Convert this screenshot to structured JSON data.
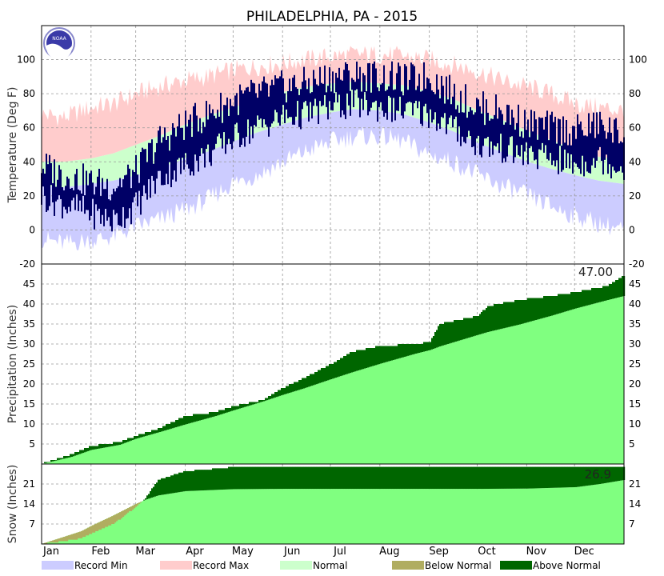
{
  "chart_data": {
    "type": "area",
    "title": "PHILADELPHIA, PA - 2015",
    "months": [
      "Jan",
      "Feb",
      "Mar",
      "Apr",
      "May",
      "Jun",
      "Jul",
      "Aug",
      "Sep",
      "Oct",
      "Nov",
      "Dec"
    ],
    "legend": [
      "Record Min",
      "Record Max",
      "Normal",
      "Below Normal",
      "Above Normal"
    ],
    "colors": {
      "record_min": "#ccccff",
      "record_max": "#ffcccc",
      "normal_temp": "#ccffcc",
      "observed_temp": "#000066",
      "below_normal": "#b0ad60",
      "above_normal": "#006600",
      "normal_accum": "#80ff80",
      "grid": "#999999"
    },
    "panels": [
      {
        "name": "temperature",
        "ylabel": "Temperature (Deg F)",
        "ylim": [
          -20,
          120
        ],
        "ticks": [
          -20,
          0,
          20,
          40,
          60,
          80,
          100
        ],
        "doy": [
          1,
          15,
          32,
          46,
          60,
          74,
          91,
          105,
          121,
          135,
          152,
          166,
          182,
          196,
          213,
          227,
          244,
          258,
          274,
          288,
          305,
          319,
          335,
          349,
          365
        ],
        "normal_high": [
          40,
          40,
          42,
          45,
          50,
          55,
          62,
          67,
          72,
          76,
          81,
          84,
          86,
          87,
          86,
          85,
          81,
          77,
          70,
          65,
          58,
          53,
          47,
          43,
          41
        ],
        "normal_low": [
          26,
          25,
          27,
          29,
          32,
          36,
          42,
          46,
          52,
          57,
          62,
          66,
          69,
          71,
          70,
          68,
          63,
          58,
          51,
          46,
          40,
          36,
          32,
          29,
          27
        ],
        "record_high": [
          68,
          66,
          72,
          74,
          80,
          84,
          88,
          90,
          94,
          96,
          98,
          100,
          102,
          103,
          103,
          102,
          100,
          97,
          93,
          88,
          84,
          80,
          74,
          72,
          70
        ],
        "record_low": [
          -5,
          -8,
          -6,
          -4,
          2,
          6,
          12,
          18,
          28,
          32,
          40,
          46,
          52,
          55,
          55,
          52,
          44,
          40,
          32,
          26,
          20,
          14,
          8,
          4,
          0
        ],
        "observed_high": [
          38,
          32,
          28,
          26,
          34,
          52,
          62,
          68,
          76,
          80,
          84,
          86,
          90,
          91,
          90,
          88,
          90,
          80,
          72,
          70,
          62,
          60,
          58,
          62,
          55
        ],
        "observed_low": [
          20,
          15,
          10,
          5,
          14,
          30,
          38,
          44,
          54,
          60,
          66,
          68,
          72,
          74,
          72,
          70,
          68,
          60,
          50,
          48,
          44,
          42,
          38,
          42,
          36
        ]
      },
      {
        "name": "precipitation",
        "ylabel": "Precipitation (Inches)",
        "ylim": [
          0,
          50
        ],
        "ticks": [
          5,
          10,
          15,
          20,
          25,
          30,
          35,
          40,
          45
        ],
        "total_label": "47.00",
        "doy": [
          1,
          20,
          32,
          50,
          60,
          75,
          91,
          110,
          121,
          140,
          152,
          165,
          182,
          195,
          213,
          235,
          244,
          250,
          274,
          280,
          300,
          320,
          335,
          355,
          365
        ],
        "normal": [
          0,
          1.8,
          3.5,
          4.8,
          6.3,
          8.0,
          9.9,
          12.0,
          13.4,
          15.7,
          17.3,
          18.9,
          21.2,
          22.9,
          25.1,
          27.6,
          28.5,
          29.4,
          32.3,
          33.0,
          34.9,
          37.1,
          38.9,
          41.0,
          42.0
        ],
        "observed": [
          0,
          2.5,
          4.5,
          5.5,
          7.0,
          9.0,
          12.0,
          13.0,
          14.5,
          16.0,
          19.0,
          21.5,
          25.0,
          28.0,
          29.5,
          30.0,
          30.5,
          35.0,
          37.0,
          39.5,
          41.0,
          42.0,
          43.0,
          44.5,
          47.0
        ]
      },
      {
        "name": "snow",
        "ylabel": "Snow (Inches)",
        "ylim": [
          0,
          28
        ],
        "ticks": [
          7,
          14,
          21
        ],
        "total_label": "26.9",
        "doy": [
          1,
          15,
          26,
          32,
          46,
          60,
          66,
          74,
          91,
          121,
          152,
          182,
          213,
          244,
          274,
          305,
          335,
          350,
          365
        ],
        "normal": [
          0,
          2.5,
          4.5,
          6.3,
          10.0,
          14.0,
          15.5,
          17.0,
          18.5,
          19.2,
          19.3,
          19.3,
          19.3,
          19.3,
          19.3,
          19.4,
          19.9,
          21.0,
          22.4
        ],
        "observed": [
          0,
          1.0,
          2.0,
          3.5,
          7.0,
          13.0,
          16.0,
          22.5,
          25.5,
          26.9,
          26.9,
          26.9,
          26.9,
          26.9,
          26.9,
          26.9,
          26.9,
          26.9,
          26.9
        ]
      }
    ]
  }
}
